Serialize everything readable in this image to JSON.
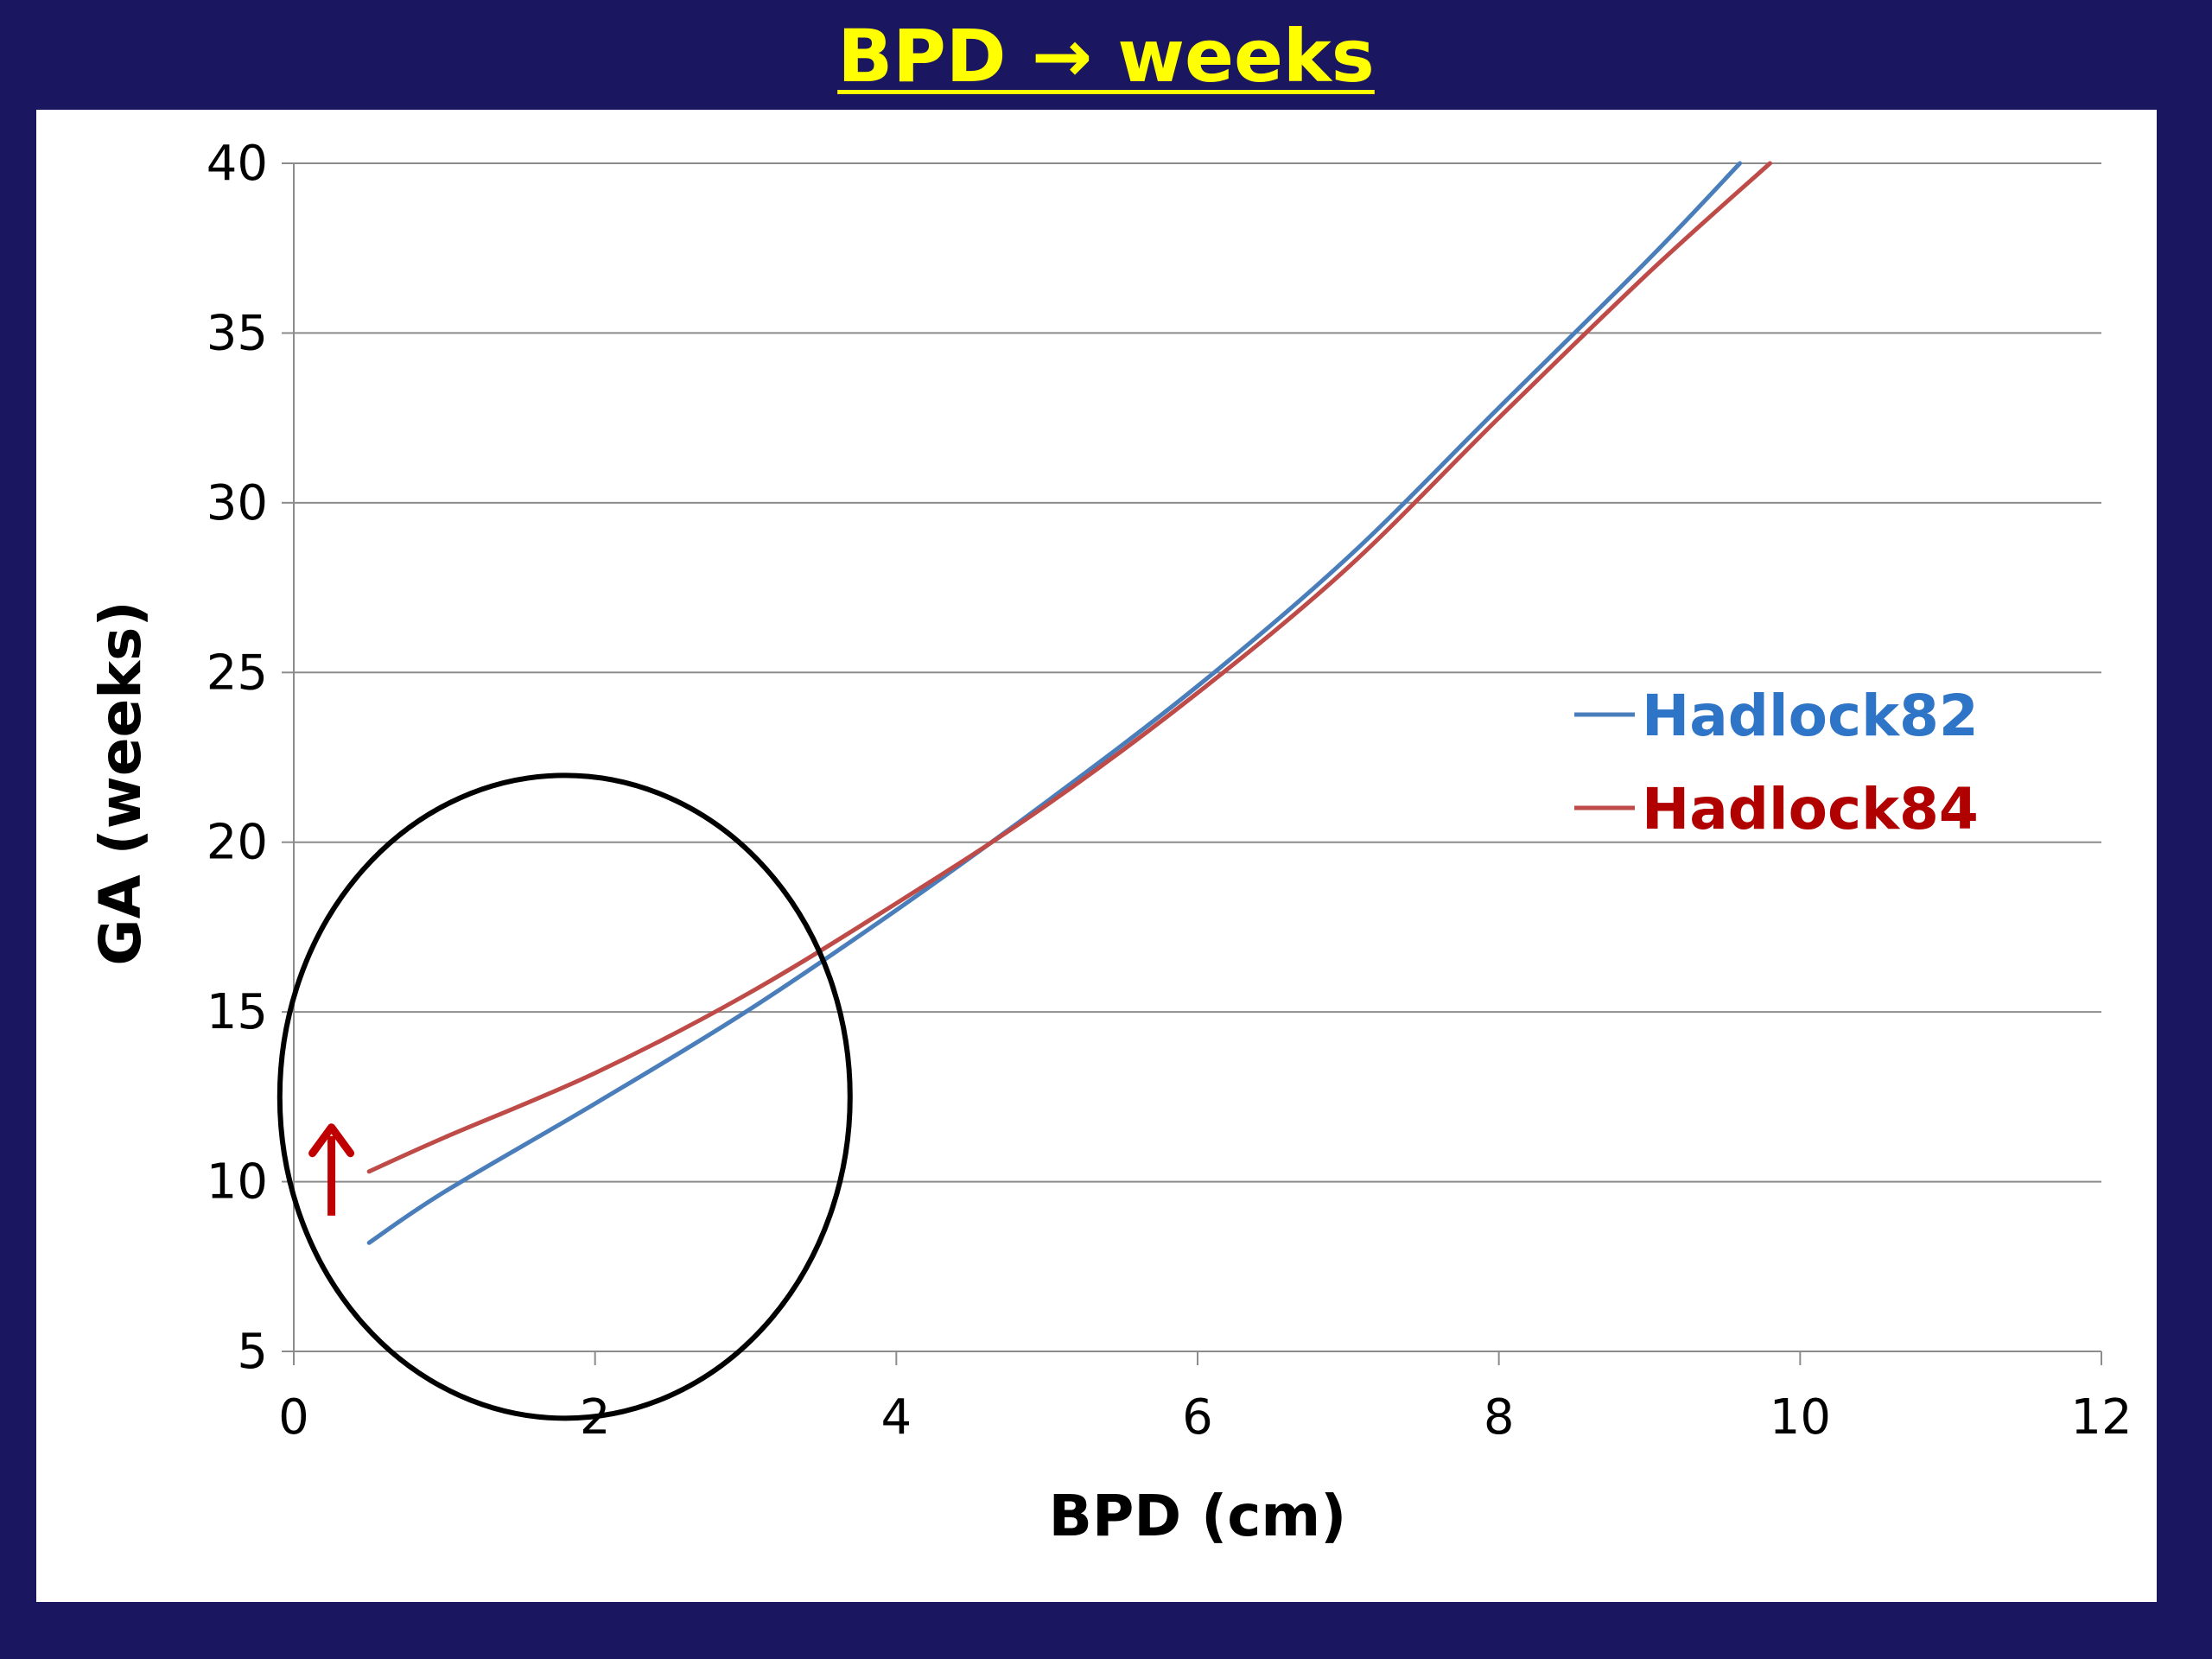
{
  "slide": {
    "title": "BPD → weeks",
    "background_color": "#1a1760",
    "title_color": "#ffff00"
  },
  "chart_data": {
    "type": "line",
    "title": "",
    "xlabel": "BPD (cm)",
    "ylabel": "GA (weeks)",
    "xlim": [
      0,
      12
    ],
    "ylim": [
      5,
      40
    ],
    "xticks": [
      0,
      2,
      4,
      6,
      8,
      10,
      12
    ],
    "yticks": [
      5,
      10,
      15,
      20,
      25,
      30,
      35,
      40
    ],
    "grid": "horizontal",
    "legend_position": "right",
    "series": [
      {
        "name": "Hadlock82",
        "color": "#4a7ebb",
        "x": [
          0.5,
          1,
          2,
          3,
          4,
          5,
          6,
          7,
          8,
          9,
          9.6
        ],
        "y": [
          8.2,
          9.7,
          12.3,
          15.0,
          18.0,
          21.2,
          24.6,
          28.4,
          32.8,
          37.2,
          40.0
        ]
      },
      {
        "name": "Hadlock84",
        "color": "#be4b48",
        "x": [
          0.5,
          1,
          2,
          3,
          4,
          5,
          6,
          7,
          8,
          9,
          9.8
        ],
        "y": [
          10.3,
          11.3,
          13.2,
          15.5,
          18.2,
          21.1,
          24.4,
          28.1,
          32.5,
          36.8,
          40.0
        ]
      }
    ],
    "annotations": [
      {
        "type": "ellipse",
        "description": "circle highlighting low BPD region",
        "color": "#000000"
      },
      {
        "type": "arrow",
        "direction": "up",
        "color": "#c00000"
      }
    ]
  }
}
